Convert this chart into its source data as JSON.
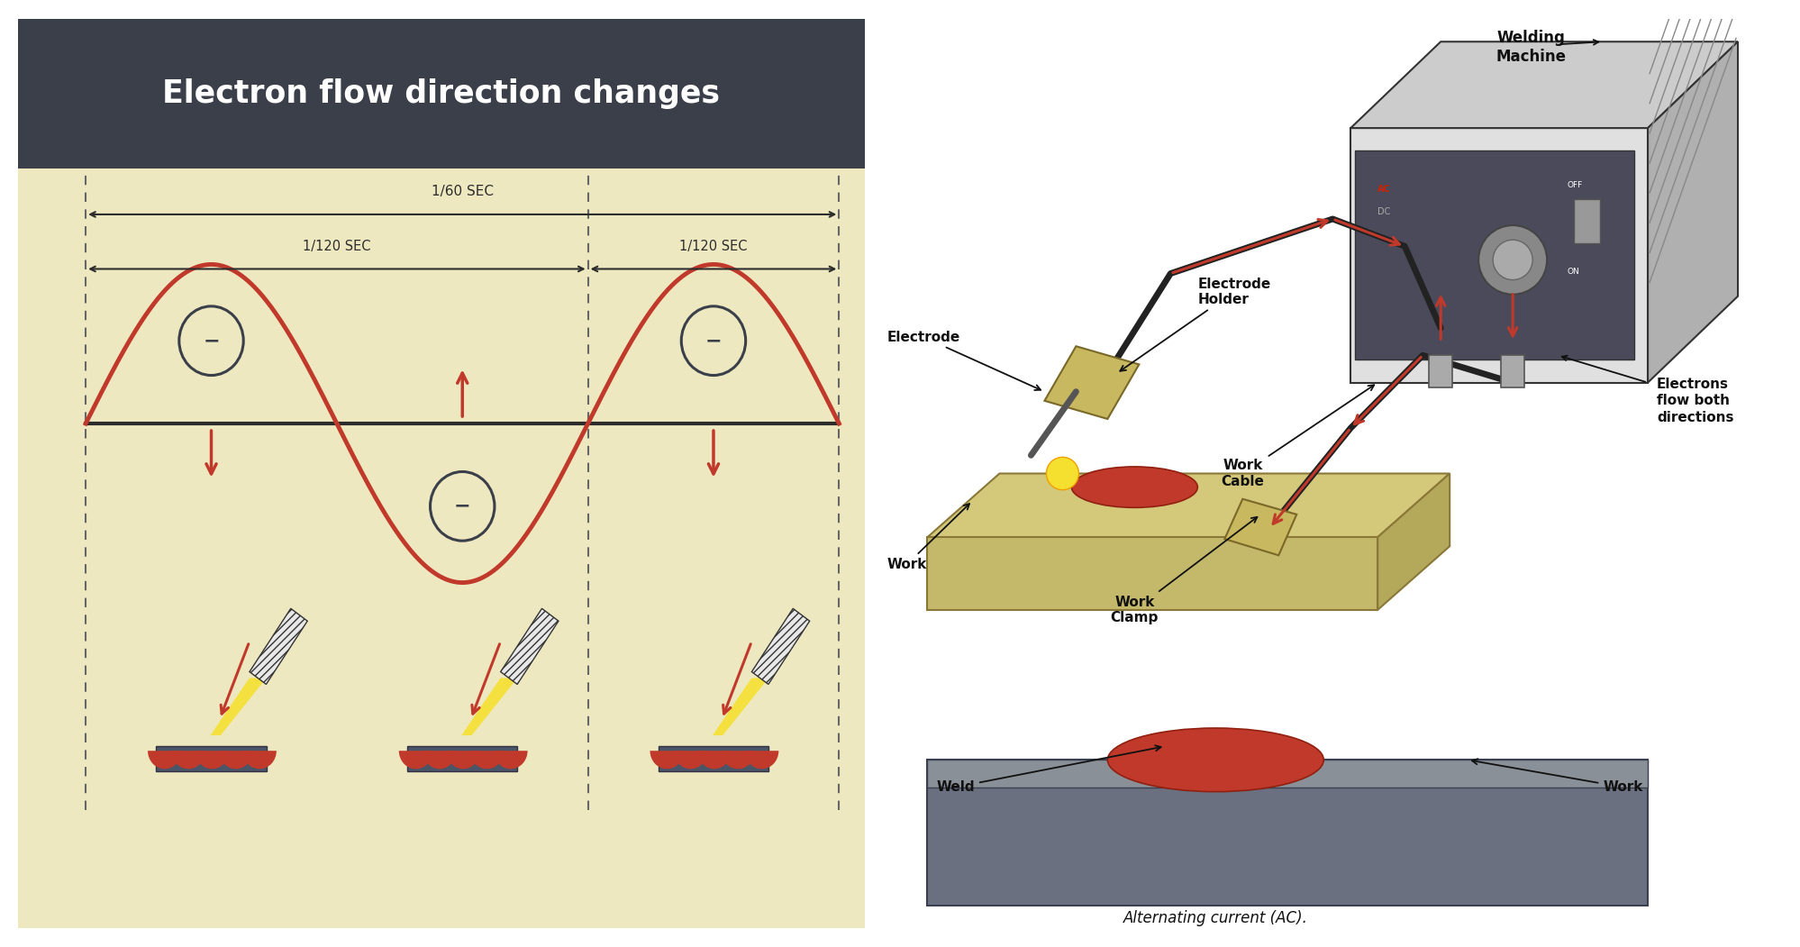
{
  "title": "Electron flow direction changes",
  "title_bg": "#3a3f4a",
  "title_color": "#ffffff",
  "left_bg": "#ede8c0",
  "wave_color": "#c0392b",
  "axis_color": "#2c2c2c",
  "dashed_color": "#666666",
  "arrow_color": "#c0392b",
  "circle_bg": "#ede8c0",
  "circle_edge": "#3a3f4a",
  "annotation_color": "#2c2c2c",
  "sec60_label": "1/60 SEC",
  "sec120a_label": "1/120 SEC",
  "sec120b_label": "1/120 SEC",
  "weld_label": "Weld",
  "work_label": "Work",
  "electrode_label": "Electrode",
  "electrode_holder_label": "Electrode\nHolder",
  "work_clamp_label": "Work\nClamp",
  "work_cable_label": "Work\nCable",
  "electrons_label": "Electrons\nflow both\ndirections",
  "welding_machine_label": "Welding\nMachine",
  "ac_label": "Alternating current (AC)."
}
